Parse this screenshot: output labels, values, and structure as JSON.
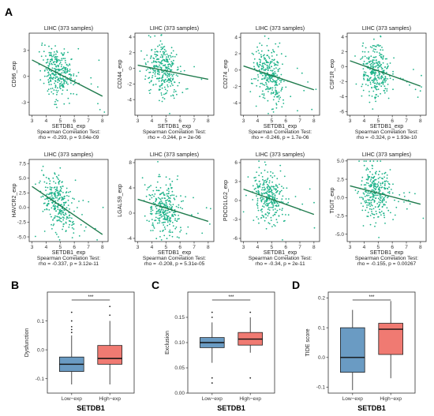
{
  "panel_labels": [
    "A",
    "B",
    "C",
    "D"
  ],
  "colors": {
    "point": "#1db38a",
    "line": "#1f7a4c",
    "low": "#6a9bc3",
    "high": "#f07a72",
    "frame": "#333333"
  },
  "scatter": {
    "title": "LIHC (373 samples)",
    "xlabel": "SETDB1_exp",
    "test_label": "Spearman Correlation Test:",
    "xticks": [
      "3",
      "4",
      "5",
      "6",
      "7",
      "8"
    ]
  },
  "boxplots": {
    "categories": [
      "Low−exp",
      "High−exp"
    ],
    "xlabel": "SETDB1",
    "significance": "***"
  },
  "chart_data": [
    {
      "type": "scatter",
      "title": "LIHC (373 samples)",
      "xlabel": "SETDB1_exp",
      "ylabel": "CD96_exp",
      "ylim": [
        -4.5,
        5
      ],
      "yticks": [
        -3,
        0,
        3
      ],
      "xlim": [
        2.8,
        8.4
      ],
      "xticks": [
        3,
        4,
        5,
        6,
        7,
        8
      ],
      "fit": {
        "x": [
          3,
          8
        ],
        "y": [
          1.9,
          -2.3
        ]
      },
      "stat": "rho = -0.293, p = 9.04e-09",
      "n": 373,
      "grid": false
    },
    {
      "type": "scatter",
      "title": "LIHC (373 samples)",
      "xlabel": "SETDB1_exp",
      "ylabel": "CD244_exp",
      "ylim": [
        -6,
        4.5
      ],
      "yticks": [
        -4,
        -2,
        0,
        2,
        4
      ],
      "xlim": [
        2.8,
        8.4
      ],
      "xticks": [
        3,
        4,
        5,
        6,
        7,
        8
      ],
      "fit": {
        "x": [
          3,
          8
        ],
        "y": [
          0.4,
          -1.4
        ]
      },
      "stat": "rho = -0.244, p = 2e-06",
      "n": 373,
      "grid": false
    },
    {
      "type": "scatter",
      "title": "LIHC (373 samples)",
      "xlabel": "SETDB1_exp",
      "ylabel": "CD274_exp",
      "ylim": [
        -5.5,
        4.5
      ],
      "yticks": [
        -4,
        -2,
        0,
        2,
        4
      ],
      "xlim": [
        2.8,
        8.4
      ],
      "xticks": [
        3,
        4,
        5,
        6,
        7,
        8
      ],
      "fit": {
        "x": [
          3,
          8
        ],
        "y": [
          0.5,
          -2.4
        ]
      },
      "stat": "rho = -0.246, p = 1.7e-06",
      "n": 373,
      "grid": false
    },
    {
      "type": "scatter",
      "title": "LIHC (373 samples)",
      "xlabel": "SETDB1_exp",
      "ylabel": "CSF1R_exp",
      "ylim": [
        -6.5,
        4.5
      ],
      "yticks": [
        -6,
        -4,
        -2,
        0,
        2,
        4
      ],
      "xlim": [
        2.8,
        8.4
      ],
      "xticks": [
        3,
        4,
        5,
        6,
        7,
        8
      ],
      "fit": {
        "x": [
          3,
          8
        ],
        "y": [
          0.8,
          -2.6
        ]
      },
      "stat": "rho = -0.324, p = 1.93e-10",
      "n": 373,
      "grid": false
    },
    {
      "type": "scatter",
      "title": "LIHC (373 samples)",
      "xlabel": "SETDB1_exp",
      "ylabel": "HAVCR2_exp",
      "ylim": [
        -5.8,
        8.2
      ],
      "yticks": [
        -5,
        -2.5,
        0,
        2.5,
        5,
        7.5
      ],
      "ytick_labels": [
        "-5.0",
        "-2.5",
        "0.0",
        "2.5",
        "5.0",
        "7.5"
      ],
      "xlim": [
        2.8,
        8.4
      ],
      "xticks": [
        3,
        4,
        5,
        6,
        7,
        8
      ],
      "fit": {
        "x": [
          3,
          8
        ],
        "y": [
          3.6,
          -4.6
        ]
      },
      "stat": "rho = -0.337, p = 3.12e-11",
      "n": 373,
      "grid": false
    },
    {
      "type": "scatter",
      "title": "LIHC (373 samples)",
      "xlabel": "SETDB1_exp",
      "ylabel": "LGALS9_exp",
      "ylim": [
        -4.5,
        8.5
      ],
      "yticks": [
        -4,
        0,
        4,
        8
      ],
      "xlim": [
        2.8,
        8.4
      ],
      "xticks": [
        3,
        4,
        5,
        6,
        7,
        8
      ],
      "fit": {
        "x": [
          3,
          8
        ],
        "y": [
          2.2,
          -1.3
        ]
      },
      "stat": "rho = -0.208, p = 5.31e-05",
      "n": 373,
      "grid": false
    },
    {
      "type": "scatter",
      "title": "LIHC (373 samples)",
      "xlabel": "SETDB1_exp",
      "ylabel": "PDCD1LG2_exp",
      "ylim": [
        -6.5,
        6.5
      ],
      "yticks": [
        -6,
        -3,
        0,
        3,
        6
      ],
      "xlim": [
        2.8,
        8.4
      ],
      "xticks": [
        3,
        4,
        5,
        6,
        7,
        8
      ],
      "fit": {
        "x": [
          3,
          8
        ],
        "y": [
          1.8,
          -2.2
        ]
      },
      "stat": "rho = -0.34, p = 2e-11",
      "n": 373,
      "grid": false
    },
    {
      "type": "scatter",
      "title": "LIHC (373 samples)",
      "xlabel": "SETDB1_exp",
      "ylabel": "TIGIT_exp",
      "ylim": [
        -6,
        5.2
      ],
      "yticks": [
        -5,
        -2.5,
        0,
        2.5,
        5
      ],
      "ytick_labels": [
        "-5.0",
        "-2.5",
        "0.0",
        "2.5",
        "5.0"
      ],
      "xlim": [
        2.8,
        8.4
      ],
      "xticks": [
        3,
        4,
        5,
        6,
        7,
        8
      ],
      "fit": {
        "x": [
          3,
          8
        ],
        "y": [
          1.6,
          -0.9
        ]
      },
      "stat": "rho = -0.155, p = 0.00267",
      "n": 373,
      "grid": false
    },
    {
      "type": "box",
      "xlabel": "SETDB1",
      "ylabel": "Dysfunction",
      "categories": [
        "Low−exp",
        "High−exp"
      ],
      "ylim": [
        -0.15,
        0.2
      ],
      "yticks": [
        -0.1,
        0,
        0.1
      ],
      "ytick_labels": [
        "-0.1",
        "0.0",
        "0.1"
      ],
      "groups": [
        {
          "q1": -0.075,
          "median": -0.05,
          "q3": -0.025,
          "whisker_low": -0.12,
          "whisker_high": 0.05,
          "outliers": [
            0.06,
            0.07,
            0.08,
            0.1,
            0.13
          ]
        },
        {
          "q1": -0.05,
          "median": -0.03,
          "q3": 0.015,
          "whisker_low": -0.12,
          "whisker_high": 0.1,
          "outliers": [
            0.12,
            0.15
          ]
        }
      ],
      "significance": "***"
    },
    {
      "type": "box",
      "xlabel": "SETDB1",
      "ylabel": "Exclusion",
      "categories": [
        "Low−exp",
        "High−exp"
      ],
      "ylim": [
        0,
        0.2
      ],
      "yticks": [
        0,
        0.05,
        0.1,
        0.15
      ],
      "ytick_labels": [
        "0.00",
        "0.05",
        "0.10",
        "0.15"
      ],
      "groups": [
        {
          "q1": 0.09,
          "median": 0.1,
          "q3": 0.11,
          "whisker_low": 0.06,
          "whisker_high": 0.14,
          "outliers": [
            0.02,
            0.03,
            0.15,
            0.16
          ]
        },
        {
          "q1": 0.095,
          "median": 0.107,
          "q3": 0.12,
          "whisker_low": 0.08,
          "whisker_high": 0.15,
          "outliers": [
            0.03,
            0.16
          ]
        }
      ],
      "significance": "***"
    },
    {
      "type": "box",
      "xlabel": "SETDB1",
      "ylabel": "TIDE score",
      "categories": [
        "Low−exp",
        "High−exp"
      ],
      "ylim": [
        -0.12,
        0.22
      ],
      "yticks": [
        -0.1,
        0,
        0.1,
        0.2
      ],
      "ytick_labels": [
        "-0.1",
        "0.0",
        "0.1",
        "0.2"
      ],
      "groups": [
        {
          "q1": -0.05,
          "median": 0.0,
          "q3": 0.1,
          "whisker_low": -0.11,
          "whisker_high": 0.16,
          "outliers": []
        },
        {
          "q1": 0.01,
          "median": 0.095,
          "q3": 0.115,
          "whisker_low": -0.07,
          "whisker_high": 0.19,
          "outliers": []
        }
      ],
      "significance": "***"
    }
  ]
}
